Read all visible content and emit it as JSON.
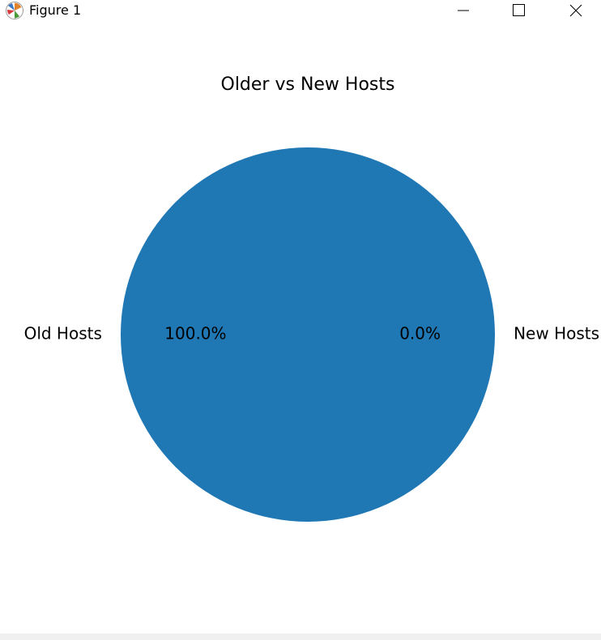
{
  "window": {
    "title": "Figure 1",
    "app_icon": "matplotlib-icon",
    "controls": {
      "minimize": "minimize-icon",
      "maximize": "maximize-icon",
      "close": "close-icon"
    }
  },
  "chart_data": {
    "type": "pie",
    "title": "Older vs New Hosts",
    "labels": [
      "Old Hosts",
      "New Hosts"
    ],
    "values": [
      100.0,
      0.0
    ],
    "autopct_labels": [
      "100.0%",
      "0.0%"
    ],
    "colors": [
      "#1f77b4",
      "#ff7f0e"
    ]
  }
}
